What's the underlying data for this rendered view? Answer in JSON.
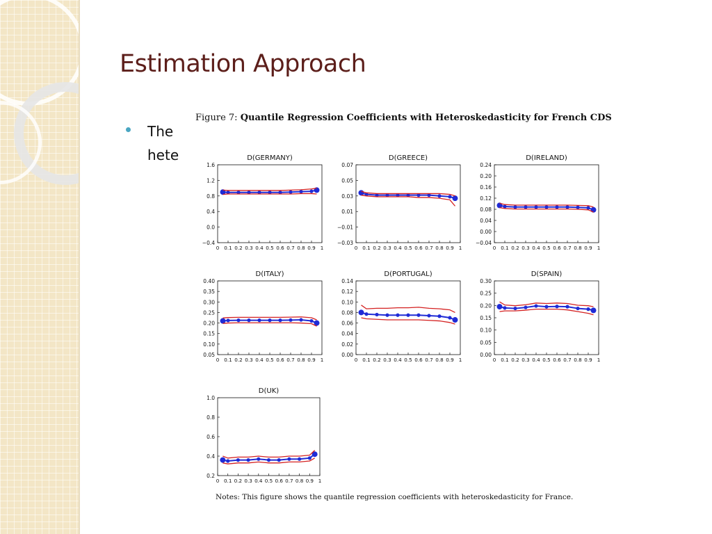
{
  "slide": {
    "title": "Estimation Approach",
    "bullet_text": "The\nhete"
  },
  "figure": {
    "caption_prefix": "Figure 7:",
    "caption_title": "Quantile Regression Coefficients with Heteroskedasticity for French CDS",
    "notes": "Notes: This figure shows the quantile regression coefficients with heteroskedasticity for France."
  },
  "colors": {
    "estimate": "#1f2bd6",
    "confidence_band": "#d42020",
    "title_text": "#5c1e1a",
    "bullet": "#4aa6c2"
  },
  "chart_data": [
    {
      "type": "line",
      "title": "D(GERMANY)",
      "x": [
        0.05,
        0.1,
        0.2,
        0.3,
        0.4,
        0.5,
        0.6,
        0.7,
        0.8,
        0.9,
        0.95
      ],
      "xlim": [
        0,
        1
      ],
      "xticks": [
        "0",
        "0.1",
        "0.2",
        "0.3",
        "0.4",
        "0.5",
        "0.6",
        "0.7",
        "0.8",
        "0.9",
        "1"
      ],
      "ylim": [
        -0.4,
        1.6
      ],
      "yticks": [
        "-0.4",
        "0.0",
        "0.4",
        "0.8",
        "1.2",
        "1.6"
      ],
      "series": [
        {
          "role": "estimate",
          "values": [
            0.9,
            0.89,
            0.89,
            0.89,
            0.89,
            0.89,
            0.89,
            0.9,
            0.91,
            0.92,
            0.95
          ]
        },
        {
          "role": "lower",
          "values": [
            0.84,
            0.85,
            0.85,
            0.85,
            0.85,
            0.85,
            0.85,
            0.85,
            0.86,
            0.86,
            0.85
          ]
        },
        {
          "role": "upper",
          "values": [
            0.95,
            0.94,
            0.94,
            0.94,
            0.94,
            0.94,
            0.94,
            0.95,
            0.96,
            0.98,
            1.0
          ]
        }
      ]
    },
    {
      "type": "line",
      "title": "D(GREECE)",
      "x": [
        0.05,
        0.1,
        0.2,
        0.3,
        0.4,
        0.5,
        0.6,
        0.7,
        0.8,
        0.9,
        0.95
      ],
      "xlim": [
        0,
        1
      ],
      "xticks": [
        "0",
        "0.1",
        "0.2",
        "0.3",
        "0.4",
        "0.5",
        "0.6",
        "0.7",
        "0.8",
        "0.9",
        "1"
      ],
      "ylim": [
        -0.03,
        0.07
      ],
      "yticks": [
        "-0.03",
        "-0.01",
        "0.01",
        "0.03",
        "0.05",
        "0.07"
      ],
      "series": [
        {
          "role": "estimate",
          "values": [
            0.034,
            0.032,
            0.031,
            0.031,
            0.031,
            0.031,
            0.031,
            0.031,
            0.03,
            0.029,
            0.027
          ]
        },
        {
          "role": "lower",
          "values": [
            0.031,
            0.03,
            0.029,
            0.029,
            0.029,
            0.029,
            0.028,
            0.028,
            0.027,
            0.025,
            0.017
          ]
        },
        {
          "role": "upper",
          "values": [
            0.036,
            0.034,
            0.033,
            0.033,
            0.033,
            0.033,
            0.033,
            0.033,
            0.033,
            0.032,
            0.03
          ]
        }
      ]
    },
    {
      "type": "line",
      "title": "D(IRELAND)",
      "x": [
        0.05,
        0.1,
        0.2,
        0.3,
        0.4,
        0.5,
        0.6,
        0.7,
        0.8,
        0.9,
        0.95
      ],
      "xlim": [
        0,
        1
      ],
      "xticks": [
        "0",
        "0.1",
        "0.2",
        "0.3",
        "0.4",
        "0.5",
        "0.6",
        "0.7",
        "0.8",
        "0.9",
        "1"
      ],
      "ylim": [
        -0.04,
        0.24
      ],
      "yticks": [
        "-0.04",
        "0.00",
        "0.04",
        "0.08",
        "0.12",
        "0.16",
        "0.20",
        "0.24"
      ],
      "series": [
        {
          "role": "estimate",
          "values": [
            0.094,
            0.09,
            0.088,
            0.088,
            0.088,
            0.088,
            0.088,
            0.088,
            0.087,
            0.085,
            0.078
          ]
        },
        {
          "role": "lower",
          "values": [
            0.086,
            0.083,
            0.081,
            0.081,
            0.081,
            0.081,
            0.081,
            0.081,
            0.08,
            0.078,
            0.07
          ]
        },
        {
          "role": "upper",
          "values": [
            0.102,
            0.097,
            0.095,
            0.095,
            0.095,
            0.095,
            0.095,
            0.095,
            0.094,
            0.093,
            0.088
          ]
        }
      ]
    },
    {
      "type": "line",
      "title": "D(ITALY)",
      "x": [
        0.05,
        0.1,
        0.2,
        0.3,
        0.4,
        0.5,
        0.6,
        0.7,
        0.8,
        0.9,
        0.95
      ],
      "xlim": [
        0,
        1
      ],
      "xticks": [
        "0",
        "0.1",
        "0.2",
        "0.3",
        "0.4",
        "0.5",
        "0.6",
        "0.7",
        "0.8",
        "0.9",
        "1"
      ],
      "ylim": [
        0.05,
        0.4
      ],
      "yticks": [
        "0.05",
        "0.10",
        "0.15",
        "0.20",
        "0.25",
        "0.30",
        "0.35",
        "0.40"
      ],
      "series": [
        {
          "role": "estimate",
          "values": [
            0.21,
            0.212,
            0.213,
            0.213,
            0.213,
            0.213,
            0.213,
            0.214,
            0.215,
            0.21,
            0.2
          ]
        },
        {
          "role": "lower",
          "values": [
            0.198,
            0.2,
            0.201,
            0.201,
            0.201,
            0.201,
            0.201,
            0.201,
            0.2,
            0.197,
            0.185
          ]
        },
        {
          "role": "upper",
          "values": [
            0.224,
            0.226,
            0.227,
            0.227,
            0.227,
            0.227,
            0.227,
            0.228,
            0.229,
            0.225,
            0.215
          ]
        }
      ]
    },
    {
      "type": "line",
      "title": "D(PORTUGAL)",
      "x": [
        0.05,
        0.1,
        0.2,
        0.3,
        0.4,
        0.5,
        0.6,
        0.7,
        0.8,
        0.9,
        0.95
      ],
      "xlim": [
        0,
        1
      ],
      "xticks": [
        "0",
        "0.1",
        "0.2",
        "0.3",
        "0.4",
        "0.5",
        "0.6",
        "0.7",
        "0.8",
        "0.9",
        "1"
      ],
      "ylim": [
        0.0,
        0.14
      ],
      "yticks": [
        "0.00",
        "0.02",
        "0.04",
        "0.06",
        "0.08",
        "0.10",
        "0.12",
        "0.14"
      ],
      "series": [
        {
          "role": "estimate",
          "values": [
            0.08,
            0.077,
            0.076,
            0.075,
            0.075,
            0.075,
            0.075,
            0.074,
            0.073,
            0.07,
            0.066
          ]
        },
        {
          "role": "lower",
          "values": [
            0.07,
            0.068,
            0.067,
            0.066,
            0.066,
            0.066,
            0.066,
            0.065,
            0.064,
            0.061,
            0.058
          ]
        },
        {
          "role": "upper",
          "values": [
            0.094,
            0.087,
            0.088,
            0.088,
            0.089,
            0.089,
            0.09,
            0.088,
            0.087,
            0.085,
            0.08
          ]
        }
      ]
    },
    {
      "type": "line",
      "title": "D(SPAIN)",
      "x": [
        0.05,
        0.1,
        0.2,
        0.3,
        0.4,
        0.5,
        0.6,
        0.7,
        0.8,
        0.9,
        0.95
      ],
      "xlim": [
        0,
        1
      ],
      "xticks": [
        "0",
        "0.1",
        "0.2",
        "0.3",
        "0.4",
        "0.5",
        "0.6",
        "0.7",
        "0.8",
        "0.9",
        "1"
      ],
      "ylim": [
        0.0,
        0.3
      ],
      "yticks": [
        "0.00",
        "0.05",
        "0.10",
        "0.15",
        "0.20",
        "0.25",
        "0.30"
      ],
      "series": [
        {
          "role": "estimate",
          "values": [
            0.195,
            0.19,
            0.188,
            0.192,
            0.198,
            0.195,
            0.196,
            0.195,
            0.188,
            0.185,
            0.18
          ]
        },
        {
          "role": "lower",
          "values": [
            0.175,
            0.178,
            0.178,
            0.181,
            0.185,
            0.185,
            0.185,
            0.182,
            0.175,
            0.168,
            0.162
          ]
        },
        {
          "role": "upper",
          "values": [
            0.215,
            0.202,
            0.199,
            0.203,
            0.21,
            0.208,
            0.21,
            0.208,
            0.201,
            0.199,
            0.195
          ]
        }
      ]
    },
    {
      "type": "line",
      "title": "D(UK)",
      "x": [
        0.05,
        0.1,
        0.2,
        0.3,
        0.4,
        0.5,
        0.6,
        0.7,
        0.8,
        0.9,
        0.95
      ],
      "xlim": [
        0,
        1
      ],
      "xticks": [
        "0",
        "0.1",
        "0.2",
        "0.3",
        "0.4",
        "0.5",
        "0.6",
        "0.7",
        "0.8",
        "0.9",
        "1"
      ],
      "ylim": [
        0.2,
        1.0
      ],
      "yticks": [
        "0.2",
        "0.4",
        "0.6",
        "0.8",
        "1.0"
      ],
      "series": [
        {
          "role": "estimate",
          "values": [
            0.36,
            0.35,
            0.36,
            0.36,
            0.37,
            0.36,
            0.36,
            0.37,
            0.37,
            0.38,
            0.42
          ]
        },
        {
          "role": "lower",
          "values": [
            0.33,
            0.32,
            0.33,
            0.33,
            0.34,
            0.33,
            0.33,
            0.34,
            0.34,
            0.35,
            0.38
          ]
        },
        {
          "role": "upper",
          "values": [
            0.4,
            0.38,
            0.39,
            0.39,
            0.4,
            0.39,
            0.39,
            0.4,
            0.4,
            0.41,
            0.46
          ]
        }
      ]
    }
  ]
}
